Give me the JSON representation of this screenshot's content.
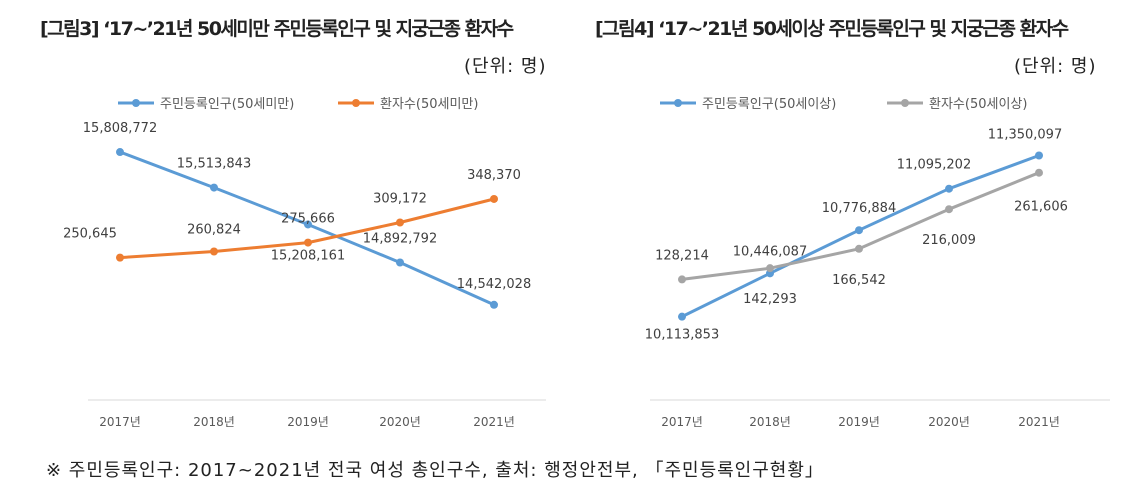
{
  "left": {
    "title": "[그림3] ‘17~’21년 50세미만 주민등록인구 및 지궁근종 환자수",
    "unit": "(단위: 명)"
  },
  "right": {
    "title": "[그림4] ‘17~’21년 50세이상 주민등록인구 및 지궁근종 환자수",
    "unit": "(단위: 명)"
  },
  "footnote": "※ 주민등록인구: 2017~2021년 전국 여성 총인구수, 출처: 행정안전부, 「주민등록인구현황」",
  "chart_data": [
    {
      "type": "line",
      "categories": [
        "2017년",
        "2018년",
        "2019년",
        "2020년",
        "2021년"
      ],
      "series": [
        {
          "name": "주민등록인구(50세미만)",
          "color": "#5B9BD5",
          "values": [
            15808772,
            15513843,
            15208161,
            14892792,
            14542028
          ],
          "labels": [
            "15,808,772",
            "15,513,843",
            "15,208,161",
            "14,892,792",
            "14,542,028"
          ]
        },
        {
          "name": "환자수(50세미만)",
          "color": "#ED7D31",
          "values": [
            250645,
            260824,
            275666,
            309172,
            348370
          ],
          "labels": [
            "250,645",
            "260,824",
            "275,666",
            "309,172",
            "348,370"
          ]
        }
      ],
      "grid": false,
      "legend": "top"
    },
    {
      "type": "line",
      "categories": [
        "2017년",
        "2018년",
        "2019년",
        "2020년",
        "2021년"
      ],
      "series": [
        {
          "name": "주민등록인구(50세이상)",
          "color": "#5B9BD5",
          "values": [
            10113853,
            10446087,
            10776884,
            11095202,
            11350097
          ],
          "labels": [
            "10,113,853",
            "10,446,087",
            "10,776,884",
            "11,095,202",
            "11,350,097"
          ]
        },
        {
          "name": "환자수(50세이상)",
          "color": "#A5A5A5",
          "values": [
            128214,
            142293,
            166542,
            216009,
            261606
          ],
          "labels": [
            "128,214",
            "142,293",
            "166,542",
            "216,009",
            "261,606"
          ]
        }
      ],
      "grid": false,
      "legend": "top"
    }
  ]
}
